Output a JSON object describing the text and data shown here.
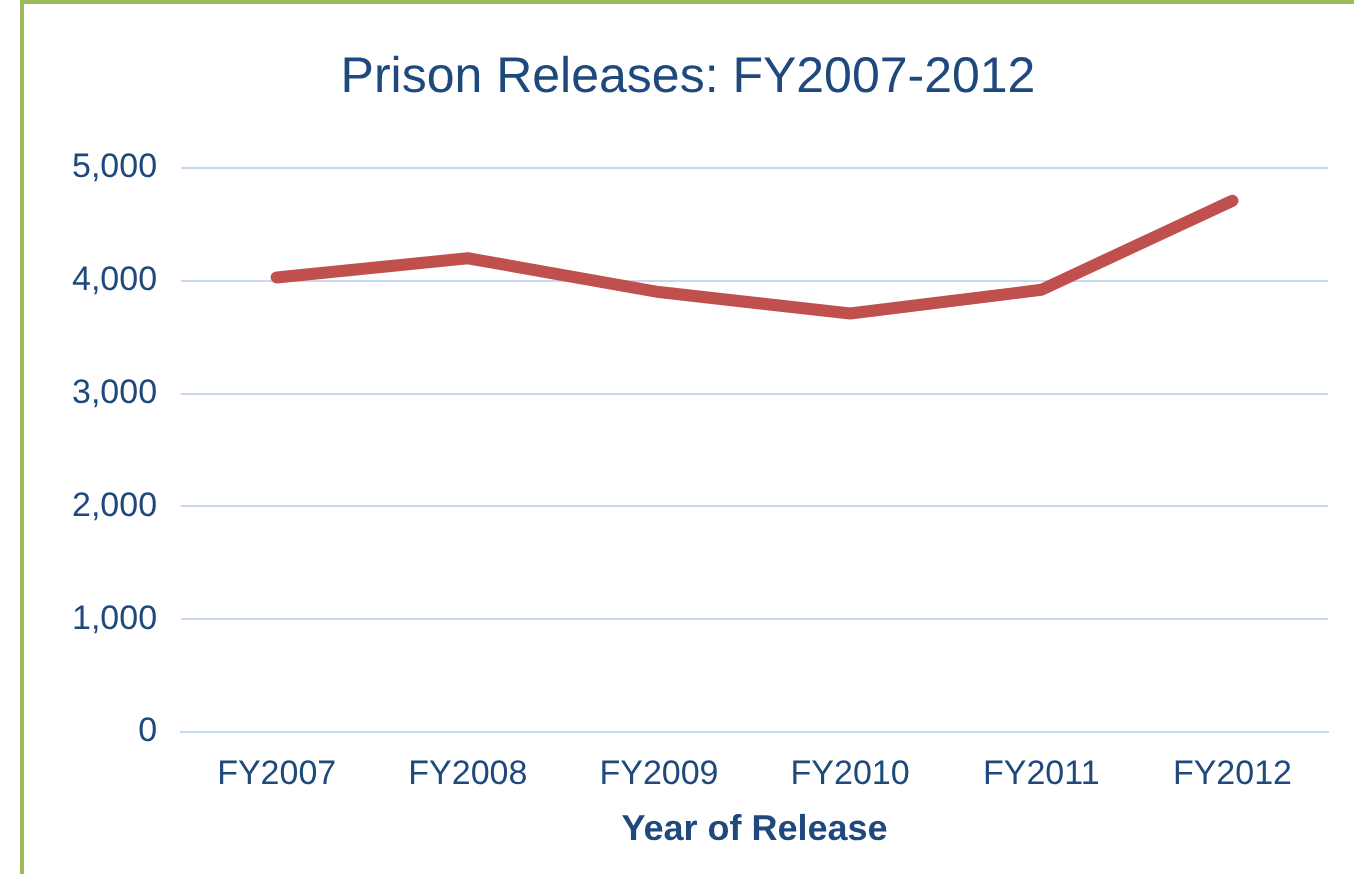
{
  "chart_data": {
    "type": "line",
    "title": "Prison Releases: FY2007-2012",
    "xlabel": "Year of Release",
    "categories": [
      "FY2007",
      "FY2008",
      "FY2009",
      "FY2010",
      "FY2011",
      "FY2012"
    ],
    "series": [
      {
        "color": "#c0504d",
        "values": [
          4030,
          4200,
          3900,
          3710,
          3920,
          4710
        ]
      }
    ],
    "ylim": [
      0,
      5000
    ],
    "yticks": [
      {
        "value": 0,
        "label": "0"
      },
      {
        "value": 1000,
        "label": "1,000"
      },
      {
        "value": 2000,
        "label": "2,000"
      },
      {
        "value": 3000,
        "label": "3,000"
      },
      {
        "value": 4000,
        "label": "4,000"
      },
      {
        "value": 5000,
        "label": "5,000"
      }
    ],
    "grid": "y",
    "legend": false,
    "marker": "none",
    "line_style": "solid"
  }
}
